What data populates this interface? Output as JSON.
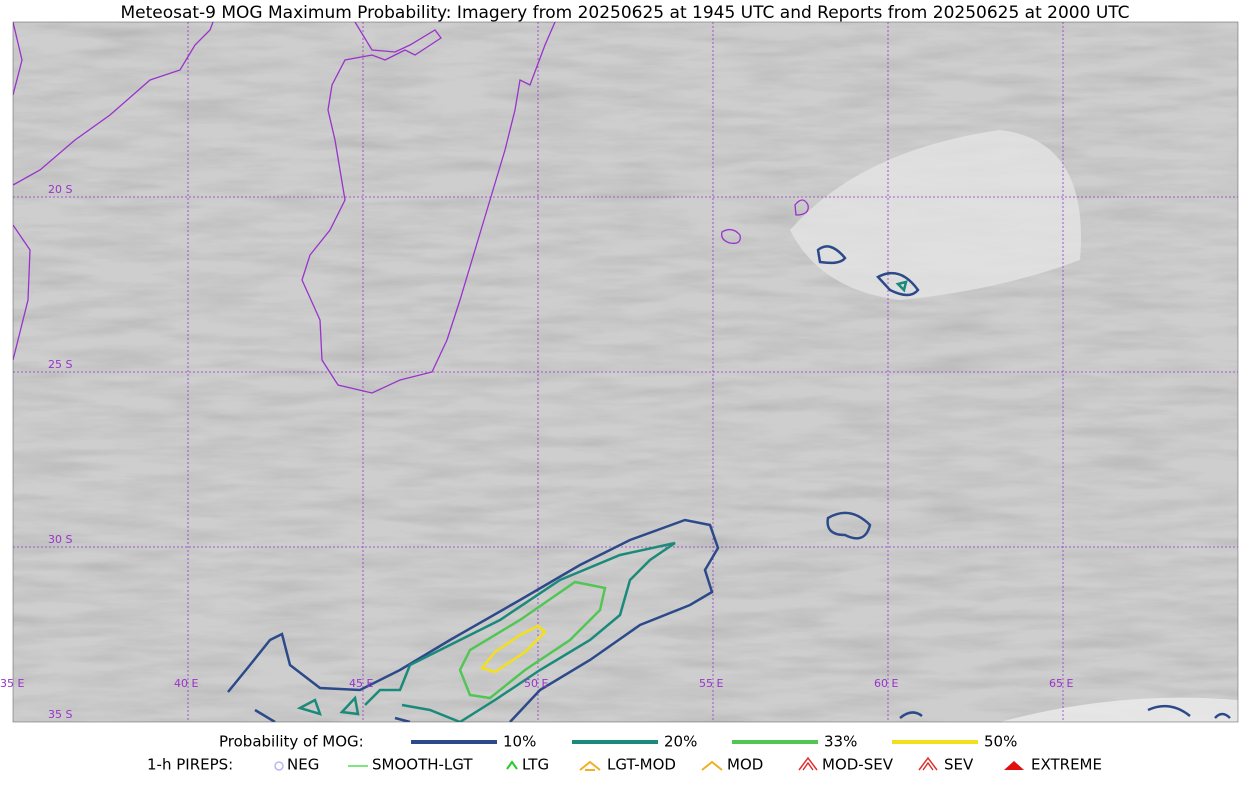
{
  "map": {
    "title": "Meteosat-9 MOG Maximum Probability: Imagery from 20250625 at 1945 UTC and Reports from 20250625 at 2000 UTC",
    "lat_labels": [
      "20 S",
      "25 S",
      "30 S",
      "35 S"
    ],
    "lon_labels": [
      "35 E",
      "40 E",
      "45 E",
      "50 E",
      "55 E",
      "60 E",
      "65 E"
    ]
  },
  "legend": {
    "probability_title": "Probability of MOG:",
    "probability_levels": [
      "10%",
      "20%",
      "33%",
      "50%"
    ],
    "pireps_title": "1-h PIREPS:",
    "pireps_types": [
      "NEG",
      "SMOOTH-LGT",
      "LTG",
      "LGT-MOD",
      "MOD",
      "MOD-SEV",
      "SEV",
      "EXTREME"
    ]
  }
}
